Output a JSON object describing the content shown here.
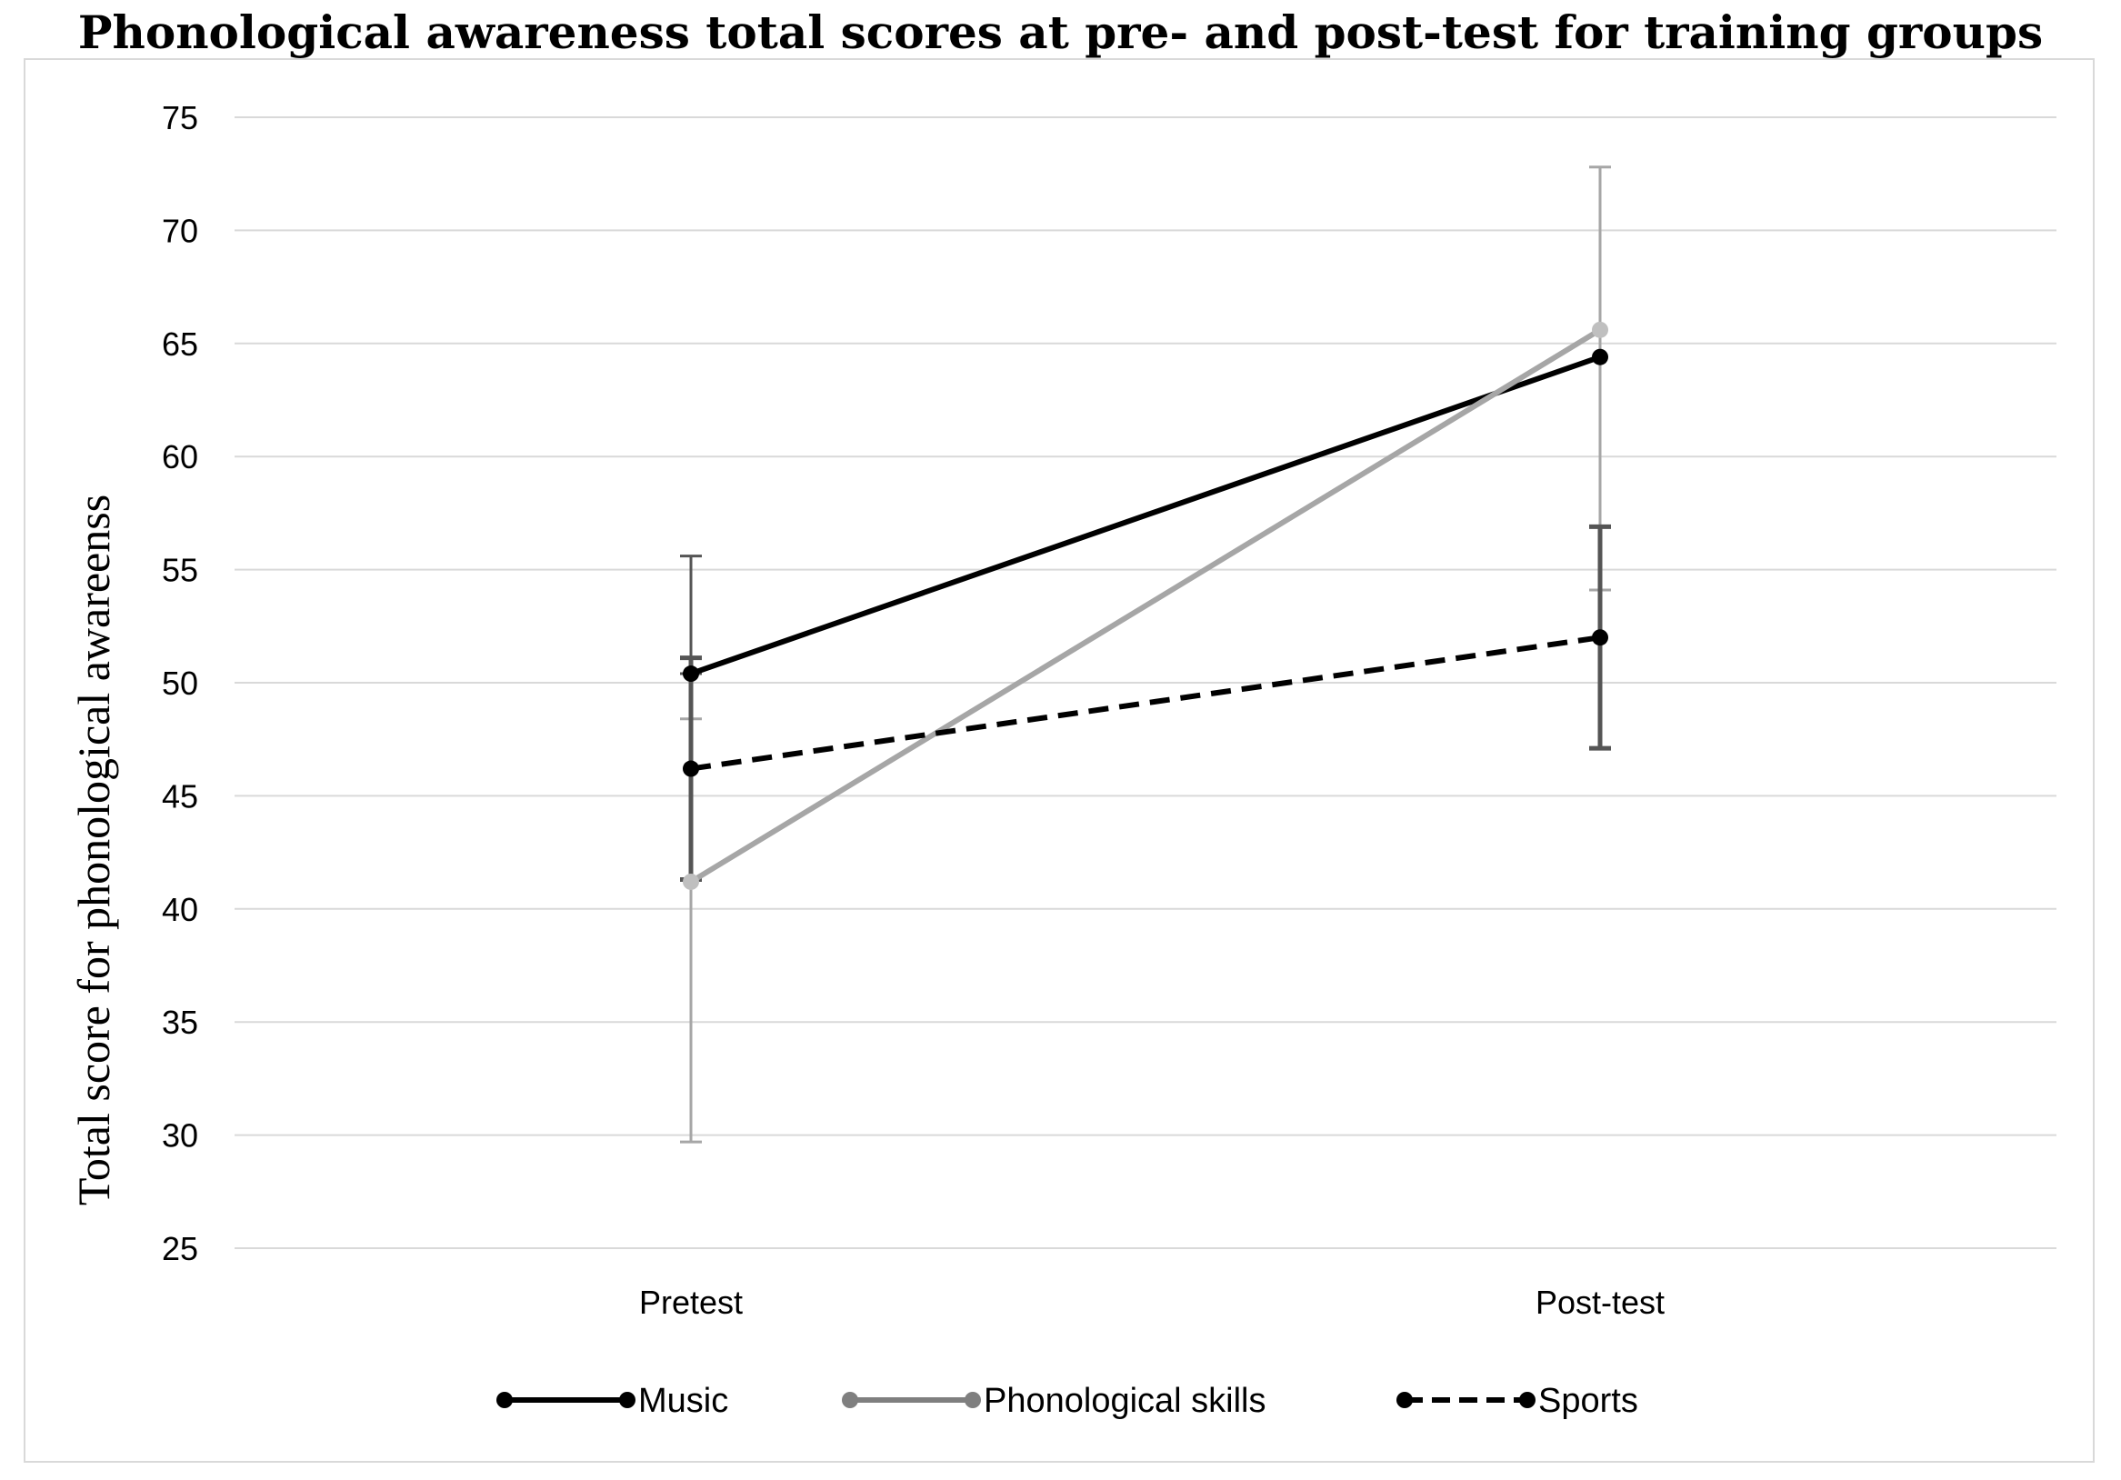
{
  "chart_data": {
    "type": "line",
    "title": "Phonological awareness total scores at pre- and post-test for training groups",
    "xlabel": "",
    "ylabel": "Total score for phonological awareenss",
    "categories": [
      "Pretest",
      "Post-test"
    ],
    "ylim": [
      25,
      75
    ],
    "yticks": [
      "25",
      "30",
      "35",
      "40",
      "45",
      "50",
      "55",
      "60",
      "65",
      "70",
      "75"
    ],
    "grid": true,
    "legend": "bottom",
    "series": [
      {
        "name": "Music",
        "values": [
          50.4,
          64.4
        ],
        "error_high": [
          55.6,
          64.4
        ],
        "error_low": [
          50.4,
          64.4
        ],
        "color": "#000000",
        "dash": "solid"
      },
      {
        "name": "Phonological skills",
        "values": [
          41.2,
          65.6
        ],
        "error_high": [
          48.4,
          72.8
        ],
        "error_low": [
          29.7,
          54.1
        ],
        "color": "#a6a6a6",
        "dash": "solid"
      },
      {
        "name": "Sports",
        "values": [
          46.2,
          52.0
        ],
        "error_high": [
          51.1,
          56.9
        ],
        "error_low": [
          41.3,
          47.1
        ],
        "color": "#000000",
        "dash": "dashed"
      }
    ]
  }
}
